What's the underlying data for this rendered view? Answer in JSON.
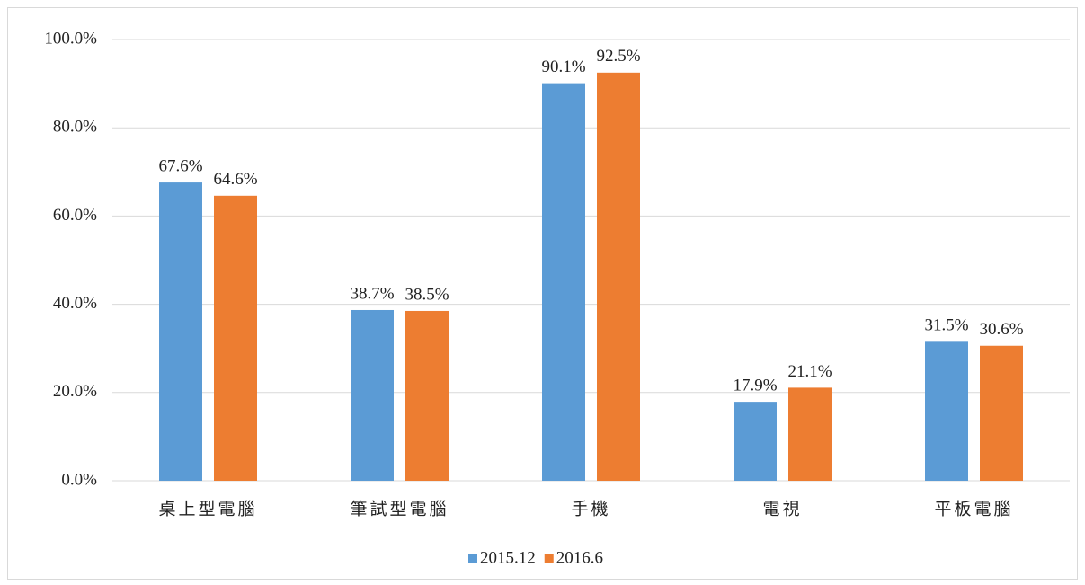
{
  "chart_data": {
    "type": "bar",
    "categories": [
      "桌上型電腦",
      "筆試型電腦",
      "手機",
      "電視",
      "平板電腦"
    ],
    "series": [
      {
        "name": "2015.12",
        "color": "#5b9bd5",
        "values": [
          67.6,
          38.7,
          90.1,
          17.9,
          31.5
        ],
        "value_labels": [
          "67.6%",
          "38.7%",
          "90.1%",
          "17.9%",
          "31.5%"
        ]
      },
      {
        "name": "2016.6",
        "color": "#ed7d31",
        "values": [
          64.6,
          38.5,
          92.5,
          21.1,
          30.6
        ],
        "value_labels": [
          "64.6%",
          "38.5%",
          "92.5%",
          "21.1%",
          "30.6%"
        ]
      }
    ],
    "ylim": [
      0,
      100
    ],
    "yticks": [
      {
        "value": 0,
        "label": "0.0%"
      },
      {
        "value": 20,
        "label": "20.0%"
      },
      {
        "value": 40,
        "label": "40.0%"
      },
      {
        "value": 60,
        "label": "60.0%"
      },
      {
        "value": 80,
        "label": "80.0%"
      },
      {
        "value": 100,
        "label": "100.0%"
      }
    ],
    "grid": true,
    "legend": "bottom"
  }
}
